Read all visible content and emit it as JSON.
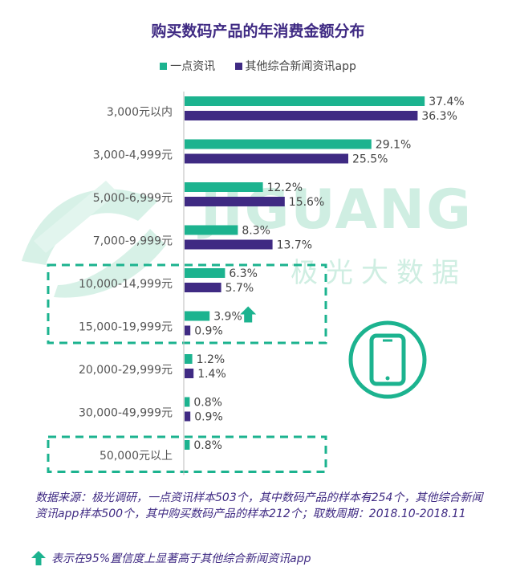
{
  "title": "购买数码产品的年消费金额分布",
  "legend": {
    "series_a": "一点资讯",
    "series_b": "其他综合新闻资讯app"
  },
  "watermark": {
    "brand": "JIGUANG",
    "sub": "极光大数据"
  },
  "colors": {
    "series_a": "#1cb38f",
    "series_b": "#3f2a83",
    "title": "#3f2a83",
    "highlight_border": "#1cb38f"
  },
  "chart_data": {
    "type": "bar",
    "orientation": "horizontal",
    "title": "购买数码产品的年消费金额分布",
    "categories": [
      "3,000元以内",
      "3,000-4,999元",
      "5,000-6,999元",
      "7,000-9,999元",
      "10,000-14,999元",
      "15,000-19,999元",
      "20,000-29,999元",
      "30,000-49,999元",
      "50,000元以上"
    ],
    "series": [
      {
        "name": "一点资讯",
        "values": [
          37.4,
          29.1,
          12.2,
          8.3,
          6.3,
          3.9,
          1.2,
          0.8,
          0.8
        ],
        "labels": [
          "37.4%",
          "29.1%",
          "12.2%",
          "8.3%",
          "6.3%",
          "3.9%",
          "1.2%",
          "0.8%",
          "0.8%"
        ]
      },
      {
        "name": "其他综合新闻资讯app",
        "values": [
          36.3,
          25.5,
          15.6,
          13.7,
          5.7,
          0.9,
          1.4,
          0.9,
          null
        ],
        "labels": [
          "36.3%",
          "25.5%",
          "15.6%",
          "13.7%",
          "5.7%",
          "0.9%",
          "1.4%",
          "0.9%",
          ""
        ]
      }
    ],
    "significant_up": [
      "15,000-19,999元"
    ],
    "highlighted_groups": [
      [
        "10,000-14,999元",
        "15,000-19,999元"
      ],
      [
        "50,000元以上"
      ]
    ],
    "xlim": [
      0,
      40
    ],
    "grid": false
  },
  "source": {
    "text": "数据来源：极光调研，一点资讯样本503个，其中数码产品的样本有254个，其他综合新闻资讯app样本500个，其中购买数码产品的样本212个；取数周期：2018.10-2018.11"
  },
  "note": {
    "text": "表示在95%置信度上显著高于其他综合新闻资讯app",
    "icon": "arrow-up-icon"
  }
}
